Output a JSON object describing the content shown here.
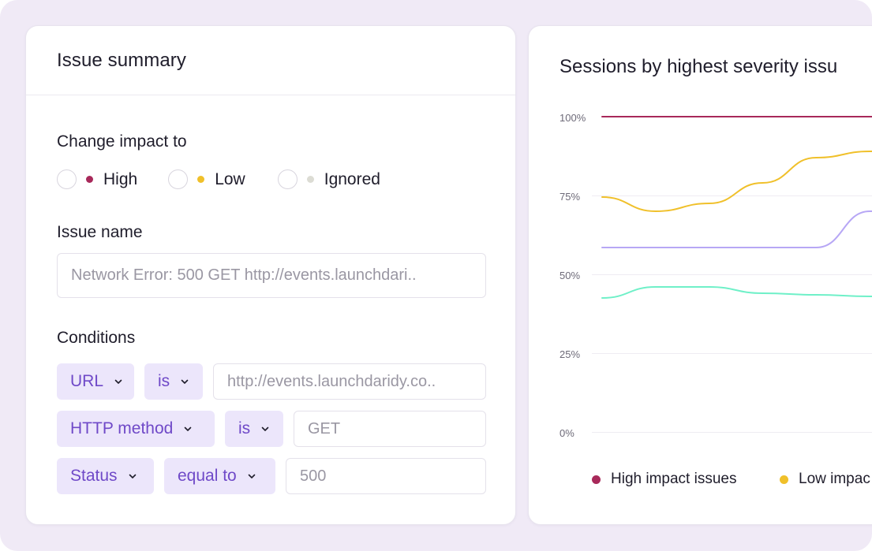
{
  "issue_summary": {
    "title": "Issue summary",
    "change_impact_label": "Change impact to",
    "impact_options": [
      {
        "label": "High",
        "color": "#a8295a"
      },
      {
        "label": "Low",
        "color": "#f0c02a"
      },
      {
        "label": "Ignored",
        "color": "#dcdcd4"
      }
    ],
    "issue_name_label": "Issue name",
    "issue_name_value": "Network Error: 500 GET http://events.launchdari..",
    "conditions_label": "Conditions",
    "conditions": [
      {
        "field": "URL",
        "operator": "is",
        "value": "http://events.launchdaridy.co.."
      },
      {
        "field": "HTTP method",
        "operator": "is",
        "value": "GET"
      },
      {
        "field": "Status",
        "operator": "equal to",
        "value": "500"
      }
    ]
  },
  "chart_data": {
    "type": "line",
    "title": "Sessions by highest severity issu",
    "y_ticks": [
      "100%",
      "75%",
      "50%",
      "25%",
      "0%"
    ],
    "ylim": [
      0,
      100
    ],
    "grid": true,
    "legend_position": "bottom",
    "series": [
      {
        "name": "High impact issues",
        "color": "#a8295a",
        "values": [
          100,
          100,
          100,
          100,
          100,
          100,
          100
        ]
      },
      {
        "name": "Low impac",
        "color": "#f0c02a",
        "values": [
          74.5,
          70,
          72.5,
          79,
          87,
          89,
          87
        ]
      },
      {
        "color": "#b7a7f5",
        "values": [
          58.5,
          58.5,
          58.5,
          58.5,
          58.5,
          70,
          73.5
        ]
      },
      {
        "color": "#6ff0c8",
        "values": [
          42.5,
          46,
          46,
          44,
          43.5,
          43,
          42.5
        ]
      }
    ]
  }
}
